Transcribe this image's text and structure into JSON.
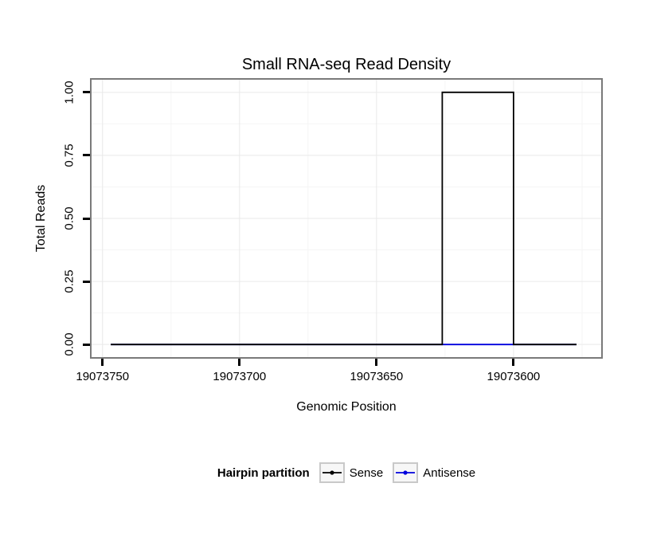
{
  "chart": {
    "title": "Small RNA-seq Read Density",
    "xlabel": "Genomic Position",
    "ylabel": "Total Reads"
  },
  "legend": {
    "title": "Hairpin partition",
    "items": [
      {
        "label": "Sense",
        "color": "#000000"
      },
      {
        "label": "Antisense",
        "color": "#0000dd"
      }
    ]
  },
  "chart_data": {
    "type": "line",
    "step": true,
    "title": "Small RNA-seq Read Density",
    "xlabel": "Genomic Position",
    "ylabel": "Total Reads",
    "x_reversed": true,
    "xlim": [
      19073754,
      19073568
    ],
    "ylim": [
      -0.05,
      1.05
    ],
    "x_ticks": [
      19073750,
      19073700,
      19073650,
      19073600
    ],
    "y_ticks": [
      0,
      0.25,
      0.5,
      0.75,
      1
    ],
    "grid": true,
    "legend_position": "bottom",
    "series": [
      {
        "name": "Antisense",
        "color": "#0000dd",
        "points": [
          [
            19073747,
            0
          ],
          [
            19073577,
            0
          ]
        ]
      },
      {
        "name": "Sense",
        "color": "#000000",
        "points": [
          [
            19073747,
            0
          ],
          [
            19073626,
            0
          ],
          [
            19073626,
            1
          ],
          [
            19073600,
            1
          ],
          [
            19073600,
            0
          ],
          [
            19073577,
            0
          ]
        ]
      }
    ],
    "colors": {
      "panel_border": "#7a7a7a",
      "grid_major": "#e9e9e9",
      "grid_minor": "#f5f5f5",
      "tick": "#000000"
    }
  }
}
